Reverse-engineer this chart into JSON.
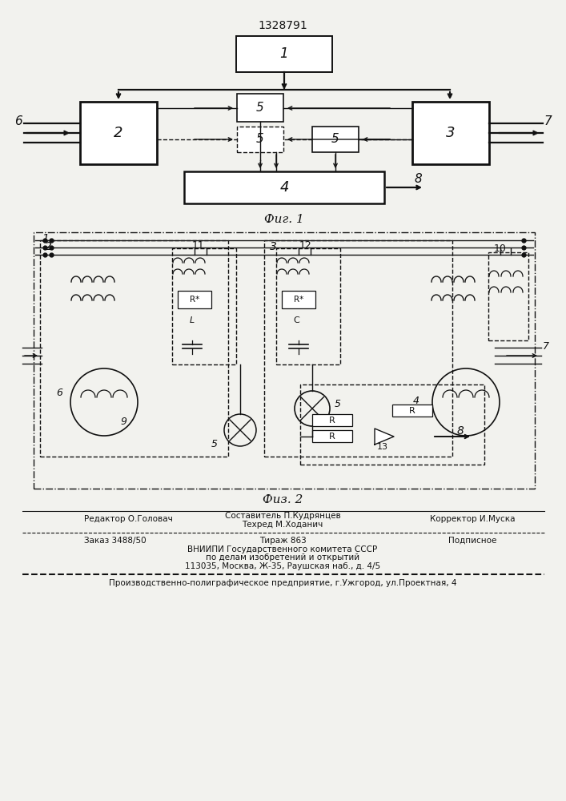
{
  "patent_number": "1328791",
  "fig1_label": "Фиг. 1",
  "fig2_label": "Физ. 2",
  "bg_color": "#f2f2ee",
  "line_color": "#111111",
  "footer_editor": "Редактор О.Головач",
  "footer_author": "Составитель П.Кудрянцев",
  "footer_techr": "Техред М.Ходанич",
  "footer_corr": "Корректор И.Муска",
  "footer_order": "Заказ 3488/50",
  "footer_tirazh": "Тираж 863",
  "footer_podp": "Подписное",
  "vnipi1": "ВНИИПИ Государственного комитета СССР",
  "vnipi2": "по делам изобретений и открытий",
  "vnipi3": "113035, Москва, Ж-35, Раушская наб., д. 4/5",
  "production": "Производственно-полиграфическое предприятие, г.Ужгород, ул.Проектная, 4"
}
